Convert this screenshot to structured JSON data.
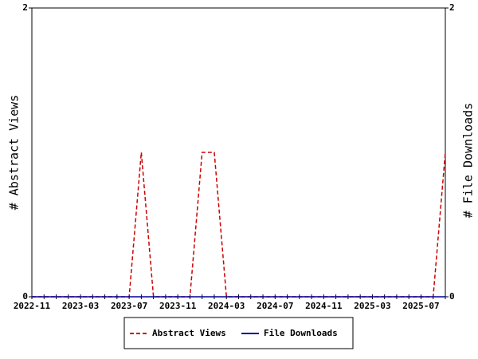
{
  "chart_data": {
    "type": "line",
    "categories": [
      "2022-11",
      null,
      null,
      null,
      "2023-03",
      null,
      null,
      null,
      "2023-07",
      null,
      null,
      null,
      "2023-11",
      null,
      null,
      null,
      "2024-03",
      null,
      null,
      null,
      "2024-07",
      null,
      null,
      null,
      "2024-11",
      null,
      null,
      null,
      "2025-03",
      null,
      null,
      null,
      "2025-07",
      null,
      null
    ],
    "series": [
      {
        "name": "Abstract Views",
        "color": "#cc0000",
        "dash": true,
        "values": [
          0,
          0,
          0,
          0,
          0,
          0,
          0,
          0,
          0,
          1,
          0,
          0,
          0,
          0,
          1,
          1,
          0,
          0,
          0,
          0,
          0,
          0,
          0,
          0,
          0,
          0,
          0,
          0,
          0,
          0,
          0,
          0,
          0,
          0,
          1
        ]
      },
      {
        "name": "File Downloads",
        "color": "#000099",
        "axis": "y2",
        "values": [
          0,
          0,
          0,
          0,
          0,
          0,
          0,
          0,
          0,
          0,
          0,
          0,
          0,
          0,
          0,
          0,
          0,
          0,
          0,
          0,
          0,
          0,
          0,
          0,
          0,
          0,
          0,
          0,
          0,
          0,
          0,
          0,
          0,
          0,
          0
        ]
      }
    ],
    "ylabel": "# Abstract Views",
    "y2label": "# File Downloads",
    "ylim": [
      0,
      2
    ],
    "yticks": [
      0,
      2
    ],
    "y2lim": [
      0,
      2
    ],
    "y2ticks": [
      0,
      2
    ]
  }
}
